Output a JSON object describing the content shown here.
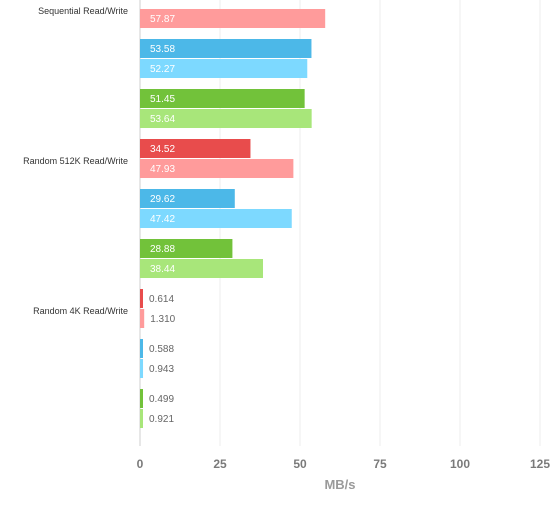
{
  "chart_data": {
    "type": "bar",
    "orientation": "horizontal",
    "xlabel": "MB/s",
    "xlim": [
      0,
      125
    ],
    "xticks": [
      0,
      25,
      50,
      75,
      100,
      125
    ],
    "grid": true,
    "groups": [
      {
        "label": "Sequential Read/Write",
        "pairs": [
          {
            "read": null,
            "write": 57.87,
            "read_label": "",
            "write_label": "57.87",
            "color_read": "#e84c4c",
            "color_write": "#ff9b9b"
          },
          {
            "read": 53.58,
            "write": 52.27,
            "read_label": "53.58",
            "write_label": "52.27",
            "color_read": "#4cb8e8",
            "color_write": "#7dd9ff"
          },
          {
            "read": 51.45,
            "write": 53.64,
            "read_label": "51.45",
            "write_label": "53.64",
            "color_read": "#72c23a",
            "color_write": "#a8e67a"
          }
        ]
      },
      {
        "label": "Random 512K Read/Write",
        "pairs": [
          {
            "read": 34.52,
            "write": 47.93,
            "read_label": "34.52",
            "write_label": "47.93",
            "color_read": "#e84c4c",
            "color_write": "#ff9b9b"
          },
          {
            "read": 29.62,
            "write": 47.42,
            "read_label": "29.62",
            "write_label": "47.42",
            "color_read": "#4cb8e8",
            "color_write": "#7dd9ff"
          },
          {
            "read": 28.88,
            "write": 38.44,
            "read_label": "28.88",
            "write_label": "38.44",
            "color_read": "#72c23a",
            "color_write": "#a8e67a"
          }
        ]
      },
      {
        "label": "Random 4K Read/Write",
        "pairs": [
          {
            "read": 0.614,
            "write": 1.31,
            "read_label": "0.614",
            "write_label": "1.310",
            "color_read": "#e84c4c",
            "color_write": "#ff9b9b"
          },
          {
            "read": 0.588,
            "write": 0.943,
            "read_label": "0.588",
            "write_label": "0.943",
            "color_read": "#4cb8e8",
            "color_write": "#7dd9ff"
          },
          {
            "read": 0.499,
            "write": 0.921,
            "read_label": "0.499",
            "write_label": "0.921",
            "color_read": "#72c23a",
            "color_write": "#a8e67a"
          }
        ]
      }
    ]
  }
}
